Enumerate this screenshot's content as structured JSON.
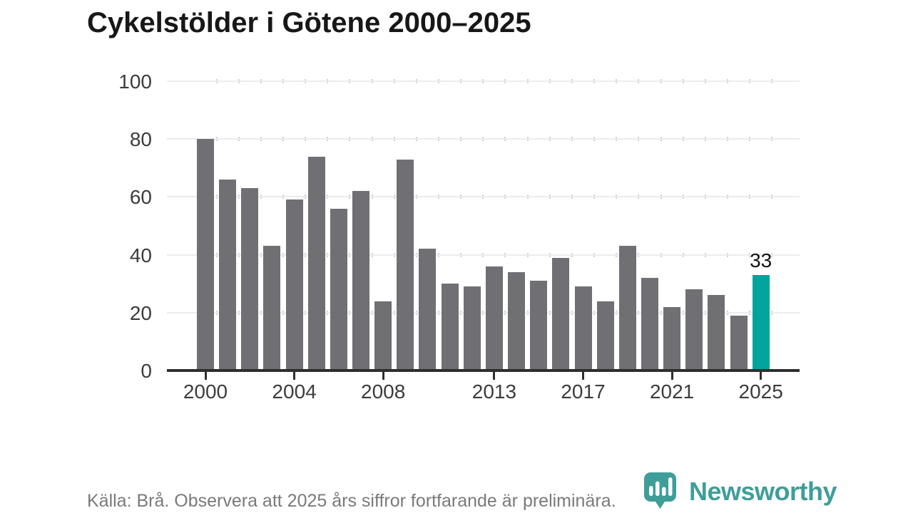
{
  "title": "Cykelstölder i Götene 2000–2025",
  "chart_data": {
    "type": "bar",
    "title": "Cykelstölder i Götene 2000–2025",
    "categories": [
      2000,
      2001,
      2002,
      2003,
      2004,
      2005,
      2006,
      2007,
      2008,
      2009,
      2010,
      2011,
      2012,
      2013,
      2014,
      2015,
      2016,
      2017,
      2018,
      2019,
      2020,
      2021,
      2022,
      2023,
      2024,
      2025
    ],
    "values": [
      80,
      66,
      63,
      43,
      59,
      74,
      56,
      62,
      24,
      73,
      42,
      30,
      29,
      36,
      34,
      31,
      39,
      29,
      24,
      43,
      32,
      22,
      28,
      26,
      19,
      33
    ],
    "xlabel": "",
    "ylabel": "",
    "ylim": [
      0,
      100
    ],
    "yticks": [
      0,
      20,
      40,
      60,
      80,
      100
    ],
    "xticks": [
      2000,
      2004,
      2008,
      2013,
      2017,
      2021,
      2025
    ],
    "grid": true,
    "legend": "none",
    "bar_color": "#6f6f74",
    "highlight_category": 2025,
    "highlight_color": "#00a49c",
    "annotation": {
      "category": 2025,
      "label": "33"
    }
  },
  "footer": {
    "source_note": "Källa: Brå. Observera att 2025 års siffror fortfarande är preliminära."
  },
  "logo": {
    "name": "Newsworthy",
    "color": "#3f9e99"
  }
}
